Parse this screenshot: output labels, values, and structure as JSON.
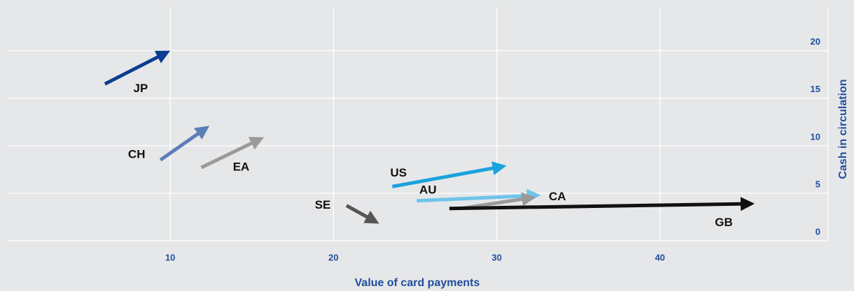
{
  "chart_data": {
    "type": "arrow",
    "x_label": "Value of card payments",
    "y_label": "Cash in circulation",
    "xlim": [
      0,
      50.3
    ],
    "xticks": [
      10,
      20,
      30,
      40
    ],
    "ylim": [
      0,
      24.6
    ],
    "yticks": [
      0,
      5,
      10,
      15,
      20
    ],
    "grid": true,
    "series": [
      {
        "name": "JP",
        "color": "#0a3d91",
        "x": [
          6.0,
          10.0
        ],
        "values": [
          16.5,
          20.0
        ]
      },
      {
        "name": "CH",
        "color": "#5b7fb8",
        "x": [
          9.4,
          12.4
        ],
        "values": [
          8.5,
          12.1
        ]
      },
      {
        "name": "EA",
        "color": "#9a9a9a",
        "x": [
          11.9,
          15.75
        ],
        "values": [
          7.7,
          10.9
        ]
      },
      {
        "name": "US",
        "color": "#1aa3dc",
        "x": [
          23.6,
          30.6
        ],
        "values": [
          5.7,
          7.9
        ]
      },
      {
        "name": "AU",
        "color": "#6fc4ea",
        "x": [
          25.1,
          32.7
        ],
        "values": [
          4.2,
          4.8
        ]
      },
      {
        "name": "CA",
        "color": "#9a9a9a",
        "x": [
          27.8,
          32.4
        ],
        "values": [
          3.4,
          4.6
        ]
      },
      {
        "name": "SE",
        "color": "#555555",
        "x": [
          20.8,
          22.8
        ],
        "values": [
          3.7,
          1.8
        ]
      },
      {
        "name": "GB",
        "color": "#111111",
        "x": [
          27.1,
          45.8
        ],
        "values": [
          3.4,
          3.9
        ]
      }
    ]
  }
}
